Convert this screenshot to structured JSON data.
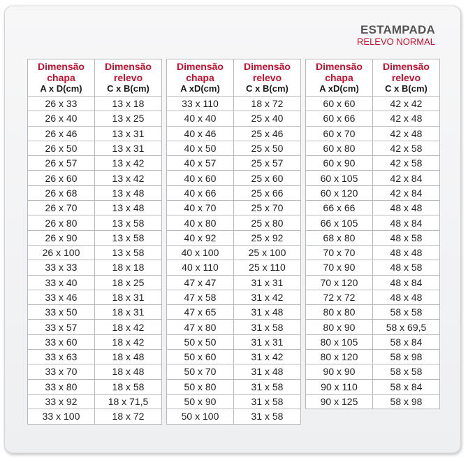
{
  "heading": {
    "title": "ESTAMPADA",
    "subtitle": "RELEVO NORMAL"
  },
  "tables": [
    {
      "headers": [
        {
          "top": "Dimensão chapa",
          "bottom": "A x D(cm)"
        },
        {
          "top": "Dimensão relevo",
          "bottom": "C x B(cm)"
        }
      ],
      "rows": [
        [
          "26 x 33",
          "13 x 18"
        ],
        [
          "26 x 40",
          "13 x 25"
        ],
        [
          "26 x 46",
          "13 x 31"
        ],
        [
          "26 x 50",
          "13 x 31"
        ],
        [
          "26 x 57",
          "13 x 42"
        ],
        [
          "26 x 60",
          "13 x 42"
        ],
        [
          "26 x 68",
          "13 x 48"
        ],
        [
          "26 x 70",
          "13 x 48"
        ],
        [
          "26 x 80",
          "13 x 58"
        ],
        [
          "26 x 90",
          "13 x 58"
        ],
        [
          "26 x 100",
          "13 x 58"
        ],
        [
          "33 x 33",
          "18 x 18"
        ],
        [
          "33 x 40",
          "18 x 25"
        ],
        [
          "33 x 46",
          "18 x 31"
        ],
        [
          "33 x 50",
          "18 x 31"
        ],
        [
          "33 x 57",
          "18 x 42"
        ],
        [
          "33 x 60",
          "18 x 42"
        ],
        [
          "33 x 63",
          "18 x 48"
        ],
        [
          "33 x 70",
          "18 x 48"
        ],
        [
          "33 x 80",
          "18 x 58"
        ],
        [
          "33 x 92",
          "18 x 71,5"
        ],
        [
          "33 x 100",
          "18 x 72"
        ]
      ]
    },
    {
      "headers": [
        {
          "top": "Dimensão chapa",
          "bottom": "A xD(cm)"
        },
        {
          "top": "Dimensão relevo",
          "bottom": "C x B(cm)"
        }
      ],
      "rows": [
        [
          "33 x 110",
          "18 x 72"
        ],
        [
          "40 x 40",
          "25 x 40"
        ],
        [
          "40 x 46",
          "25 x 46"
        ],
        [
          "40 x 50",
          "25 x 50"
        ],
        [
          "40 x 57",
          "25 x 57"
        ],
        [
          "40 x 60",
          "25 x 60"
        ],
        [
          "40 x 66",
          "25 x 66"
        ],
        [
          "40 x 70",
          "25 x 70"
        ],
        [
          "40 x 80",
          "25 x 80"
        ],
        [
          "40 x 92",
          "25 x 92"
        ],
        [
          "40 x 100",
          "25 x 100"
        ],
        [
          "40 x 110",
          "25 x 110"
        ],
        [
          "47 x 47",
          "31 x 31"
        ],
        [
          "47 x 58",
          "31 x 42"
        ],
        [
          "47 x 65",
          "31 x 48"
        ],
        [
          "47 x 80",
          "31 x 58"
        ],
        [
          "50 x 50",
          "31 x 31"
        ],
        [
          "50 x 60",
          "31 x 42"
        ],
        [
          "50 x 70",
          "31 x 48"
        ],
        [
          "50 x 80",
          "31 x 58"
        ],
        [
          "50 x 90",
          "31 x 58"
        ],
        [
          "50 x 100",
          "31 x 58"
        ]
      ]
    },
    {
      "headers": [
        {
          "top": "Dimensão chapa",
          "bottom": "A xD(cm)"
        },
        {
          "top": "Dimensão relevo",
          "bottom": "C x B(cm)"
        }
      ],
      "rows": [
        [
          "60 x 60",
          "42 x 42"
        ],
        [
          "60 x 66",
          "42 x 48"
        ],
        [
          "60 x 70",
          "42 x 48"
        ],
        [
          "60 x 80",
          "42 x 58"
        ],
        [
          "60 x 90",
          "42 x 58"
        ],
        [
          "60 x 105",
          "42 x 84"
        ],
        [
          "60 x 120",
          "42 x 84"
        ],
        [
          "66 x 66",
          "48 x 48"
        ],
        [
          "66 x 105",
          "48 x 84"
        ],
        [
          "68 x 80",
          "48 x 58"
        ],
        [
          "70 x 70",
          "48 x 48"
        ],
        [
          "70 x 90",
          "48 x 58"
        ],
        [
          "70 x 120",
          "48 x 84"
        ],
        [
          "72 x 72",
          "48 x 48"
        ],
        [
          "80 x 80",
          "58 x 58"
        ],
        [
          "80 x 90",
          "58 x 69,5"
        ],
        [
          "80 x 105",
          "58 x 84"
        ],
        [
          "80 x 120",
          "58 x 98"
        ],
        [
          "90 x 90",
          "58 x 58"
        ],
        [
          "90 x 110",
          "58 x 84"
        ],
        [
          "90 x 125",
          "58 x 98"
        ]
      ]
    }
  ]
}
